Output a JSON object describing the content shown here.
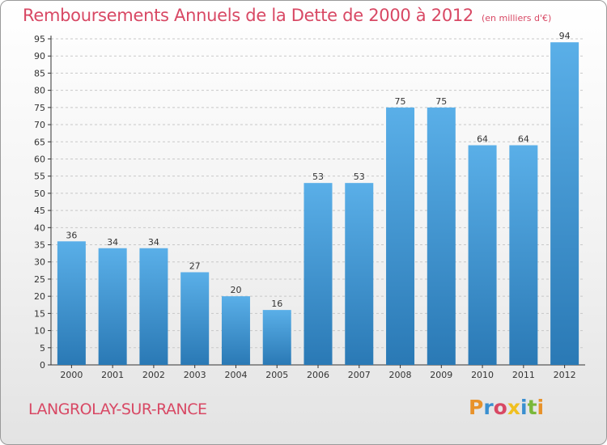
{
  "colors": {
    "accent": "#d84864",
    "bar_top": "#5aafe8",
    "bar_bottom": "#2a79b5",
    "axis": "#333333",
    "grid": "#c8c8c8"
  },
  "header": {
    "title": "Remboursements Annuels de la Dette de 2000 à 2012",
    "unit": "(en milliers d'€)"
  },
  "footer": {
    "commune": "LANGROLAY-SUR-RANCE",
    "logo_letters": [
      {
        "char": "P",
        "color": "#e8922a"
      },
      {
        "char": "r",
        "color": "#3a8fd0"
      },
      {
        "char": "o",
        "color": "#d84864"
      },
      {
        "char": "x",
        "color": "#f0c020"
      },
      {
        "char": "i",
        "color": "#3a8fd0"
      },
      {
        "char": "t",
        "color": "#7ab83a"
      },
      {
        "char": "i",
        "color": "#e8922a"
      }
    ]
  },
  "chart_data": {
    "type": "bar",
    "title": "Remboursements Annuels de la Dette de 2000 à 2012",
    "subtitle": "(en milliers d'€)",
    "xlabel": "",
    "ylabel": "",
    "categories": [
      "2000",
      "2001",
      "2002",
      "2003",
      "2004",
      "2005",
      "2006",
      "2007",
      "2008",
      "2009",
      "2010",
      "2011",
      "2012"
    ],
    "values": [
      36,
      34,
      34,
      27,
      20,
      16,
      53,
      53,
      75,
      75,
      64,
      64,
      94
    ],
    "ylim": [
      0,
      95
    ],
    "yticks": [
      0,
      5,
      10,
      15,
      20,
      25,
      30,
      35,
      40,
      45,
      50,
      55,
      60,
      65,
      70,
      75,
      80,
      85,
      90,
      95
    ],
    "grid": true,
    "legend": "none"
  }
}
